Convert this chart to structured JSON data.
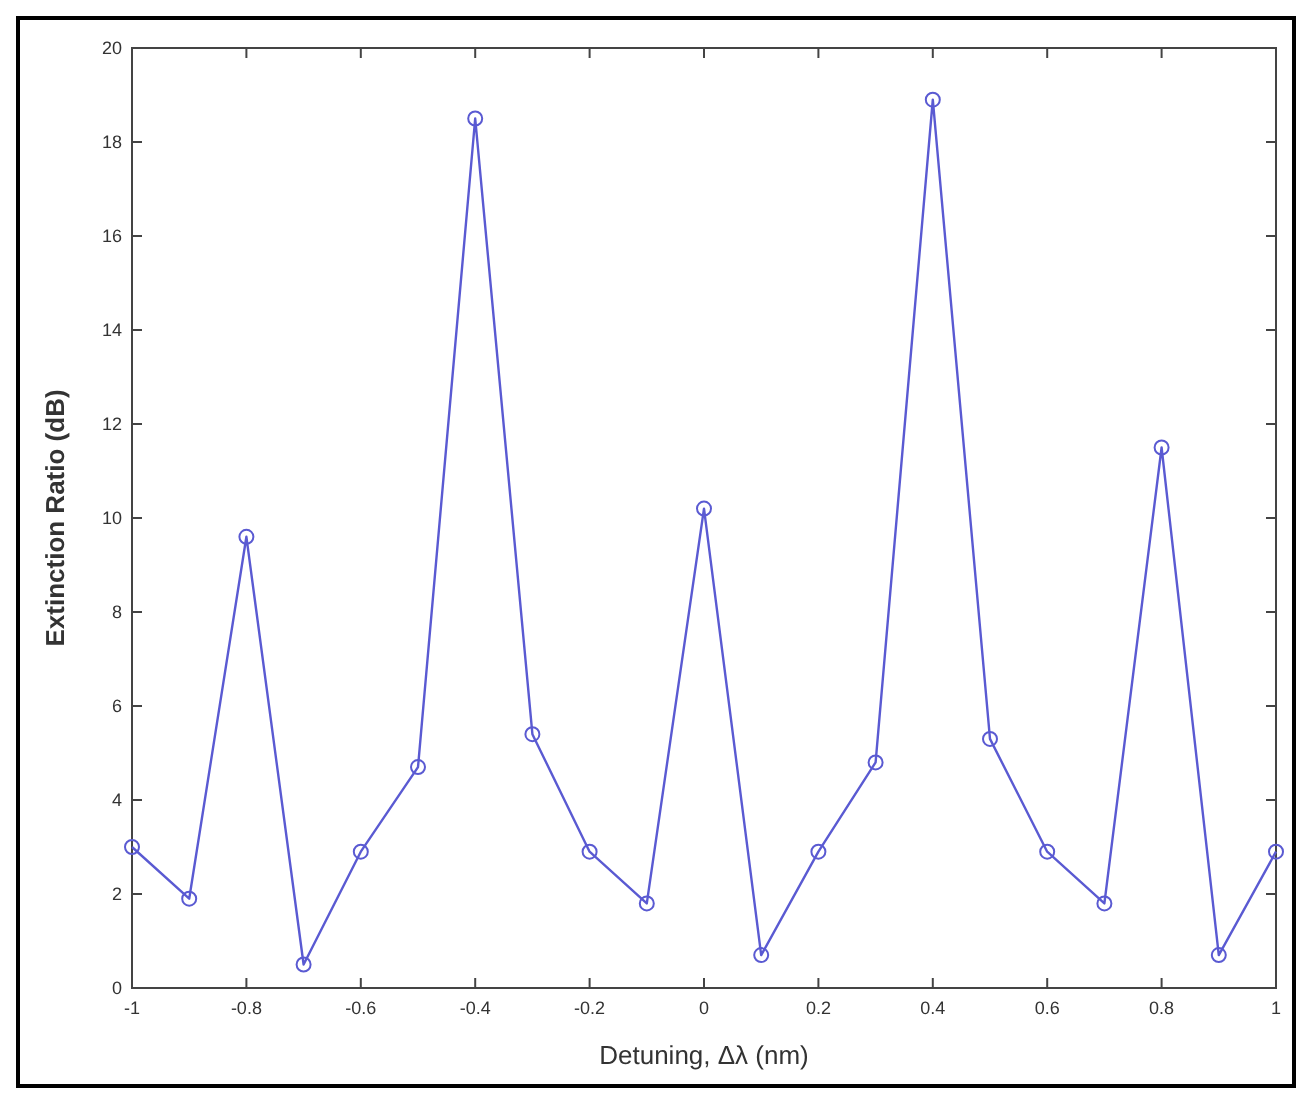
{
  "chart_data": {
    "type": "line",
    "xlabel": "Detuning, Δλ (nm)",
    "ylabel": "Extinction Ratio (dB)",
    "x": [
      -1,
      -0.9,
      -0.8,
      -0.7,
      -0.6,
      -0.5,
      -0.4,
      -0.3,
      -0.2,
      -0.1,
      0,
      0.1,
      0.2,
      0.3,
      0.4,
      0.5,
      0.6,
      0.7,
      0.8,
      0.9,
      1
    ],
    "series": [
      {
        "color": "#5a5ad2",
        "values": [
          3.0,
          1.9,
          9.6,
          0.5,
          2.9,
          4.7,
          18.5,
          5.4,
          2.9,
          1.8,
          10.2,
          0.7,
          2.9,
          4.8,
          18.9,
          5.3,
          2.9,
          1.8,
          11.5,
          0.7,
          2.9
        ]
      }
    ],
    "xlim": [
      -1,
      1
    ],
    "xticks": [
      -1,
      -0.8,
      -0.6,
      -0.4,
      -0.2,
      0,
      0.2,
      0.4,
      0.6,
      0.8,
      1
    ],
    "ylim": [
      0,
      20
    ],
    "yticks": [
      0,
      2,
      4,
      6,
      8,
      10,
      12,
      14,
      16,
      18,
      20
    ],
    "grid": false,
    "marker": "circle",
    "line_style": "solid"
  }
}
